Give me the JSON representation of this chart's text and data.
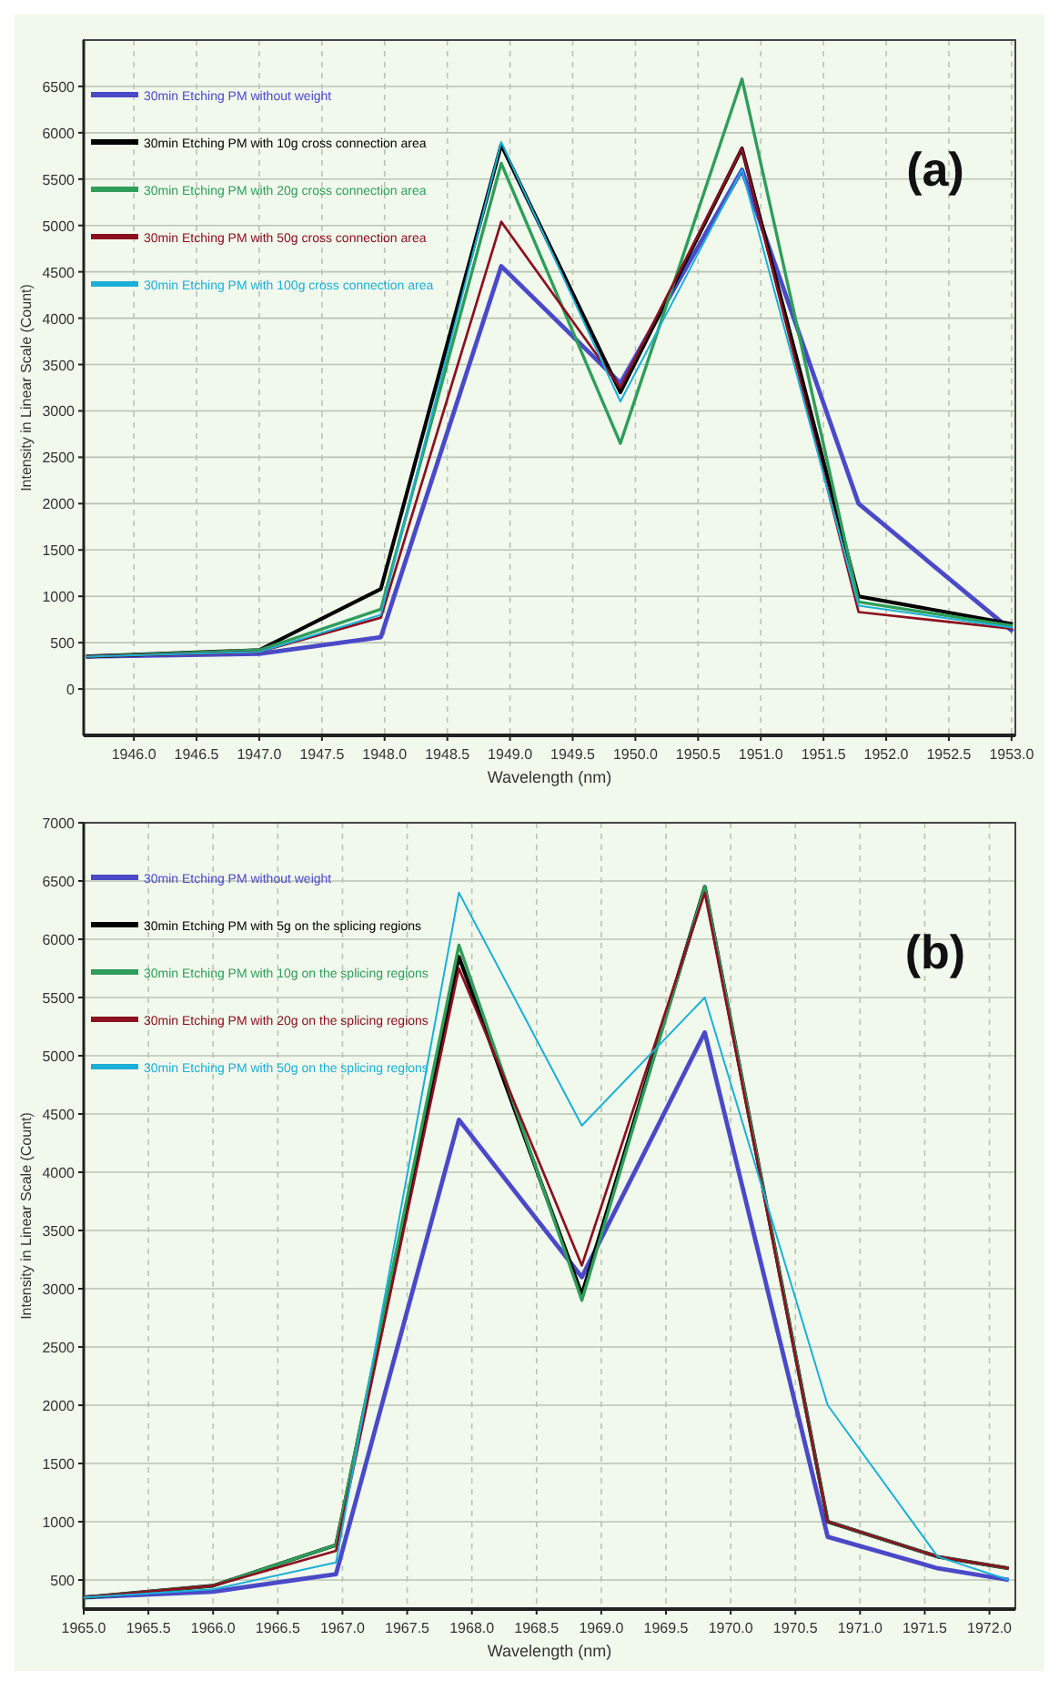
{
  "chart_data": [
    {
      "type": "line",
      "xlabel": "Wavelength (nm)",
      "ylabel": "Intensity in Linear Scale (Count)",
      "annotations": [
        "(a)"
      ],
      "grid": true,
      "legend": "top left",
      "marker": "none",
      "line_style": "solid",
      "xlim": [
        1945.6,
        1953.03
      ],
      "ylim": [
        -500,
        7000
      ],
      "xticks": [
        {
          "value": 1946,
          "label": "1946.0"
        },
        1946.5,
        {
          "value": 1947,
          "label": "1947.0"
        },
        1947.5,
        {
          "value": 1948,
          "label": "1948.0"
        },
        1948.5,
        {
          "value": 1949,
          "label": "1949.0"
        },
        1949.5,
        {
          "value": 1950,
          "label": "1950.0"
        },
        1950.5,
        {
          "value": 1951,
          "label": "1951.0"
        },
        1951.5,
        {
          "value": 1952,
          "label": "1952.0"
        },
        1952.5,
        {
          "value": 1953,
          "label": "1953.0"
        }
      ],
      "yticks": [
        0,
        500,
        1000,
        1500,
        2000,
        2500,
        3000,
        3500,
        4000,
        4500,
        5000,
        5500,
        6000,
        6500
      ],
      "x": [
        1945.62,
        1947.0,
        1947.97,
        1948.93,
        1949.88,
        1950.85,
        1951.78,
        1953.01
      ],
      "series": [
        {
          "name": "30min Etching PM without weight",
          "color": "#4a4ac8",
          "values": [
            350,
            380,
            560,
            4560,
            3300,
            5600,
            2000,
            620
          ]
        },
        {
          "name": "30min Etching PM with 10g cross connection area",
          "color": "#000000",
          "values": [
            350,
            420,
            1080,
            5870,
            3200,
            5830,
            1000,
            700
          ]
        },
        {
          "name": "30min Etching PM with 20g cross connection area",
          "color": "#2e9e5a",
          "values": [
            350,
            420,
            860,
            5670,
            2650,
            6580,
            940,
            680
          ]
        },
        {
          "name": "30min Etching PM with 50g cross connection area",
          "color": "#8b1020",
          "values": [
            350,
            400,
            770,
            5040,
            3250,
            5830,
            830,
            650
          ]
        },
        {
          "name": "30min Etching PM with 100g cross connection area",
          "color": "#1ab0d8",
          "values": [
            350,
            400,
            800,
            5900,
            3100,
            5600,
            900,
            660
          ]
        }
      ]
    },
    {
      "type": "line",
      "xlabel": "Wavelength (nm)",
      "ylabel": "Intensity in Linear Scale (Count)",
      "annotations": [
        "(b)"
      ],
      "grid": true,
      "legend": "top left",
      "marker": "none",
      "line_style": "solid",
      "xlim": [
        1965.0,
        1972.2
      ],
      "ylim": [
        250,
        7000
      ],
      "xticks": [
        {
          "value": 1965,
          "label": "1965.0"
        },
        1965.5,
        {
          "value": 1966,
          "label": "1966.0"
        },
        1966.5,
        {
          "value": 1967,
          "label": "1967.0"
        },
        1967.5,
        {
          "value": 1968,
          "label": "1968.0"
        },
        1968.5,
        {
          "value": 1969,
          "label": "1969.0"
        },
        1969.5,
        {
          "value": 1970,
          "label": "1970.0"
        },
        1970.5,
        {
          "value": 1971,
          "label": "1971.0"
        },
        1971.5,
        {
          "value": 1972,
          "label": "1972.0"
        }
      ],
      "yticks": [
        500,
        1000,
        1500,
        2000,
        2500,
        3000,
        3500,
        4000,
        4500,
        5000,
        5500,
        6000,
        6500,
        7000
      ],
      "x": [
        1965.0,
        1966.0,
        1966.95,
        1967.9,
        1968.85,
        1969.8,
        1970.75,
        1971.6,
        1972.15
      ],
      "series": [
        {
          "name": "30min Etching PM without weight",
          "color": "#4a4ac8",
          "values": [
            350,
            400,
            550,
            4450,
            3100,
            5200,
            870,
            600,
            500
          ]
        },
        {
          "name": "30min Etching PM with 5g on the splicing regions",
          "color": "#000000",
          "values": [
            350,
            450,
            800,
            5850,
            2950,
            6450,
            1000,
            700,
            600
          ]
        },
        {
          "name": "30min Etching PM with 10g on the splicing regions",
          "color": "#2e9e5a",
          "values": [
            350,
            450,
            800,
            5950,
            2900,
            6450,
            1000,
            700,
            600
          ]
        },
        {
          "name": "30min Etching PM with 20g on the splicing regions",
          "color": "#8b1020",
          "values": [
            350,
            450,
            750,
            5750,
            3200,
            6400,
            1000,
            700,
            600
          ]
        },
        {
          "name": "30min Etching PM with 50g on the splicing regions",
          "color": "#1ab0d8",
          "values": [
            350,
            420,
            650,
            6400,
            4400,
            5500,
            2000,
            700,
            500
          ]
        }
      ]
    }
  ]
}
